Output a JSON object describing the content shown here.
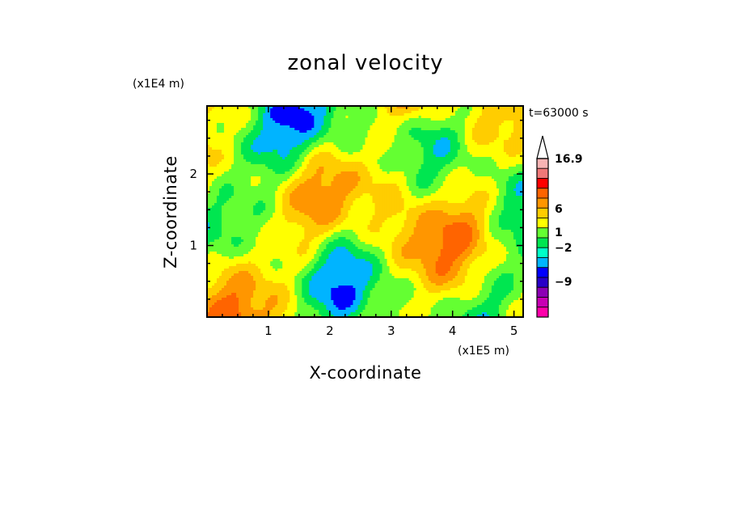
{
  "chart_data": {
    "type": "heatmap",
    "title": "zonal velocity",
    "xlabel": "X-coordinate",
    "ylabel": "Z-coordinate",
    "x_scale_label": "(x1E5 m)",
    "y_scale_label": "(x1E4 m)",
    "time_label": "t=63000 s",
    "xlim": [
      0,
      5.15
    ],
    "ylim": [
      0,
      2.95
    ],
    "x_ticks": [
      "1",
      "2",
      "3",
      "4",
      "5"
    ],
    "y_ticks": [
      "1",
      "2"
    ],
    "colorbar": {
      "labels": [
        {
          "text": "16.9",
          "value": 16.9
        },
        {
          "text": "6",
          "value": 6
        },
        {
          "text": "1",
          "value": 1
        },
        {
          "text": "−2",
          "value": -2
        },
        {
          "text": "−9",
          "value": -9
        }
      ],
      "levels": [
        {
          "color": "#ff00aa"
        },
        {
          "color": "#c800b4"
        },
        {
          "color": "#8c00b4"
        },
        {
          "color": "#2800c8"
        },
        {
          "color": "#0000ff"
        },
        {
          "color": "#00b4ff"
        },
        {
          "color": "#00ffc8"
        },
        {
          "color": "#00e650"
        },
        {
          "color": "#64ff32"
        },
        {
          "color": "#ffff00"
        },
        {
          "color": "#ffcd00"
        },
        {
          "color": "#ff9600"
        },
        {
          "color": "#ff6400"
        },
        {
          "color": "#ff0000"
        },
        {
          "color": "#f07878"
        },
        {
          "color": "#f8b4b4"
        }
      ]
    }
  }
}
